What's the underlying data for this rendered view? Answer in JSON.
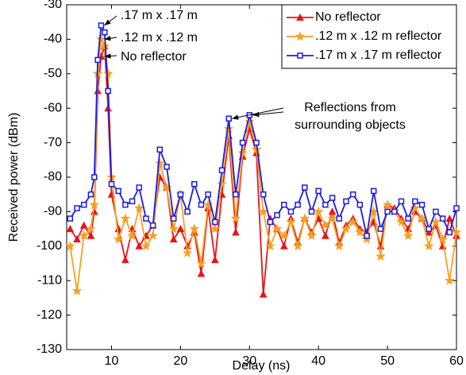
{
  "chart_data": {
    "type": "line",
    "x": [
      4,
      5,
      6,
      7,
      7.5,
      8,
      8.5,
      9,
      9.5,
      10,
      11,
      12,
      13,
      14,
      15,
      16,
      17,
      18,
      19,
      20,
      21,
      22,
      23,
      24,
      25,
      26,
      27,
      28,
      29,
      30,
      31,
      32,
      33,
      34,
      35,
      36,
      37,
      38,
      39,
      40,
      41,
      42,
      43,
      44,
      45,
      46,
      47,
      48,
      49,
      50,
      51,
      52,
      53,
      54,
      55,
      56,
      57,
      58,
      59,
      60
    ],
    "series": [
      {
        "name": "No reflector",
        "color": "#e8131b",
        "marker": "triangle",
        "values": [
          -95,
          -98,
          -94,
          -97,
          -90,
          -55,
          -45,
          -42,
          -60,
          -85,
          -95,
          -104,
          -95,
          -100,
          -97,
          -94,
          -80,
          -83,
          -98,
          -95,
          -100,
          -96,
          -108,
          -89,
          -104,
          -85,
          -68,
          -96,
          -74,
          -66,
          -73,
          -114,
          -92,
          -95,
          -100,
          -92,
          -99,
          -92,
          -96,
          -92,
          -97,
          -90,
          -99,
          -94,
          -92,
          -95,
          -96,
          -93,
          -100,
          -88,
          -89,
          -92,
          -95,
          -90,
          -92,
          -96,
          -94,
          -100,
          -92,
          -97
        ]
      },
      {
        "name": ".12 m x .12 m reflector",
        "color": "#f7a020",
        "marker": "star",
        "values": [
          -100,
          -113,
          -97,
          -95,
          -88,
          -50,
          -40,
          -42,
          -50,
          -80,
          -98,
          -92,
          -97,
          -89,
          -100,
          -97,
          -76,
          -83,
          -95,
          -85,
          -102,
          -95,
          -105,
          -88,
          -95,
          -82,
          -66,
          -92,
          -73,
          -64,
          -72,
          -90,
          -100,
          -95,
          -97,
          -93,
          -100,
          -92,
          -97,
          -90,
          -94,
          -92,
          -100,
          -95,
          -93,
          -96,
          -98,
          -90,
          -103,
          -88,
          -90,
          -93,
          -97,
          -89,
          -92,
          -100,
          -93,
          -98,
          -110,
          -96
        ]
      },
      {
        "name": ".17 m x .17 m reflector",
        "color": "#1c1ce0",
        "marker": "square",
        "values": [
          -92,
          -89,
          -88,
          -85,
          -80,
          -46,
          -36,
          -38,
          -55,
          -82,
          -84,
          -88,
          -87,
          -83,
          -92,
          -94,
          -72,
          -77,
          -92,
          -85,
          -90,
          -82,
          -88,
          -85,
          -93,
          -78,
          -63,
          -85,
          -70,
          -62,
          -70,
          -85,
          -93,
          -91,
          -88,
          -90,
          -88,
          -83,
          -90,
          -84,
          -88,
          -86,
          -92,
          -87,
          -85,
          -88,
          -97,
          -84,
          -95,
          -90,
          -90,
          -87,
          -92,
          -87,
          -88,
          -95,
          -90,
          -92,
          -96,
          -89
        ]
      }
    ],
    "xlabel": "Delay (ns)",
    "ylabel": "Received power (dBm)",
    "xlim": [
      3.5,
      60
    ],
    "xticks": [
      10,
      20,
      30,
      40,
      50,
      60
    ],
    "ylim": [
      -130,
      -30
    ],
    "yticks": [
      -130,
      -120,
      -110,
      -100,
      -90,
      -80,
      -70,
      -60,
      -50,
      -40,
      -30
    ],
    "grid": false,
    "legend": "upper right",
    "annotations": [
      ".17 m x .17 m",
      ".12 m x .12 m",
      "No reflector",
      "Reflections from",
      "surrounding objects"
    ]
  }
}
